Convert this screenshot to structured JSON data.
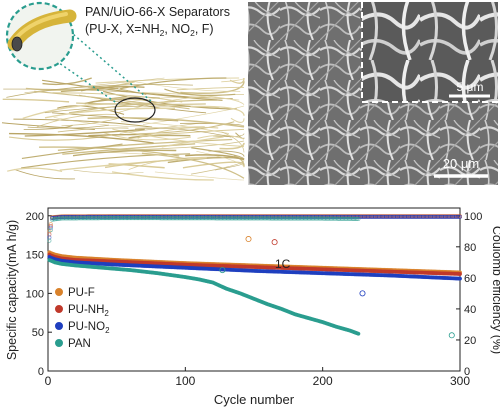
{
  "figure": {
    "separator_title_line1": "PAN/UiO-66-X Separators",
    "separator_title_line2_pre": "(PU-X, X=NH",
    "separator_title_sub2": "2",
    "separator_title_line2_mid": ", NO",
    "separator_title_sub3": "2",
    "separator_title_line2_post": ", F)",
    "sem_scale_inset": "5 μm",
    "sem_scale_main": "20 μm"
  },
  "chart_data": {
    "type": "scatter",
    "xlabel": "Cycle number",
    "ylabel": "Specific capacity(mA h/g)",
    "y2label": "Coulomb efficiency (%)",
    "annotation": "1C",
    "xlim": [
      0,
      300
    ],
    "ylim": [
      0,
      210
    ],
    "y2lim": [
      0,
      105
    ],
    "x_ticks": [
      0,
      100,
      200,
      300
    ],
    "y_ticks": [
      0,
      50,
      100,
      150,
      200
    ],
    "y2_ticks": [
      0,
      20,
      40,
      60,
      80,
      100
    ],
    "grid": false,
    "legend_position": "bottom-left",
    "legend": [
      {
        "label": "PU-F",
        "sub": "",
        "color": "#d9822b"
      },
      {
        "label": "PU-NH",
        "sub": "2",
        "color": "#c0392b"
      },
      {
        "label": "PU-NO",
        "sub": "2",
        "color": "#1f3fbf"
      },
      {
        "label": "PAN",
        "sub": "",
        "color": "#2a9d8f"
      }
    ],
    "series": [
      {
        "name": "PU-F",
        "color": "#d9822b",
        "axis": "left",
        "style": "filled",
        "x": [
          1,
          2,
          5,
          10,
          20,
          50,
          100,
          150,
          200,
          250,
          300
        ],
        "y": [
          153,
          152,
          150,
          148,
          146,
          143,
          139,
          136,
          133,
          130,
          127
        ]
      },
      {
        "name": "PU-NH2",
        "color": "#c0392b",
        "axis": "left",
        "style": "filled",
        "x": [
          1,
          2,
          5,
          10,
          20,
          50,
          100,
          150,
          200,
          250,
          300
        ],
        "y": [
          150,
          149,
          147,
          145,
          143,
          141,
          137,
          134,
          131,
          128,
          125
        ]
      },
      {
        "name": "PU-NO2",
        "color": "#1f3fbf",
        "axis": "left",
        "style": "filled",
        "x": [
          1,
          2,
          5,
          10,
          20,
          50,
          100,
          150,
          200,
          250,
          300
        ],
        "y": [
          147,
          146,
          144,
          142,
          140,
          137,
          133,
          129,
          126,
          123,
          119
        ]
      },
      {
        "name": "PAN",
        "color": "#2a9d8f",
        "axis": "left",
        "style": "filled",
        "x": [
          1,
          5,
          10,
          20,
          40,
          60,
          80,
          100,
          110,
          120,
          130,
          140,
          150,
          160,
          170,
          180,
          190,
          200,
          210,
          220,
          226
        ],
        "y": [
          143,
          140,
          138,
          136,
          133,
          130,
          126,
          121,
          118,
          114,
          106,
          100,
          93,
          86,
          80,
          73,
          68,
          63,
          57,
          52,
          48
        ]
      },
      {
        "name": "PU-F CE",
        "color": "#d9822b",
        "axis": "right",
        "style": "open",
        "x": [
          1,
          3,
          10,
          50,
          100,
          150,
          200,
          250,
          300
        ],
        "y": [
          90,
          99,
          99.6,
          99.7,
          99.7,
          99.7,
          99.7,
          99.7,
          99.7
        ]
      },
      {
        "name": "PU-NH2 CE",
        "color": "#c0392b",
        "axis": "right",
        "style": "open",
        "x": [
          1,
          3,
          10,
          50,
          100,
          150,
          200,
          250,
          300
        ],
        "y": [
          88,
          98.8,
          99.4,
          99.5,
          99.5,
          99.5,
          99.5,
          99.5,
          99.5
        ]
      },
      {
        "name": "PU-NO2 CE",
        "color": "#1f3fbf",
        "axis": "right",
        "style": "open",
        "x": [
          1,
          3,
          10,
          50,
          100,
          150,
          200,
          250,
          300
        ],
        "y": [
          86,
          98.5,
          99.2,
          99.3,
          99.3,
          99.3,
          99.3,
          99.3,
          99.3
        ]
      },
      {
        "name": "PAN CE",
        "color": "#2a9d8f",
        "axis": "right",
        "style": "open",
        "x": [
          1,
          3,
          10,
          50,
          100,
          150,
          200,
          226
        ],
        "y": [
          84,
          97.5,
          98.3,
          98.5,
          98.4,
          98.3,
          98.2,
          98.0
        ]
      }
    ],
    "outliers": [
      {
        "color": "#d9822b",
        "axis": "right",
        "x": 146,
        "y": 85
      },
      {
        "color": "#c0392b",
        "axis": "right",
        "x": 165,
        "y": 83
      },
      {
        "color": "#2a9d8f",
        "axis": "right",
        "x": 127,
        "y": 65
      },
      {
        "color": "#1f3fbf",
        "axis": "right",
        "x": 229,
        "y": 50
      },
      {
        "color": "#2a9d8f",
        "axis": "right",
        "x": 294,
        "y": 23
      }
    ]
  }
}
